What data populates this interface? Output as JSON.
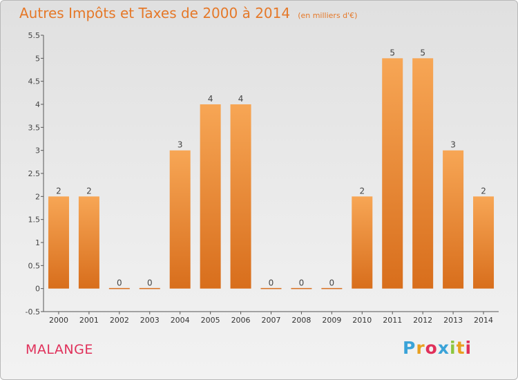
{
  "title": "Autres Impôts et Taxes de 2000 à 2014",
  "unit_note": "(en milliers d'€)",
  "city": "MALANGE",
  "logo": {
    "text": "Proxiti",
    "colors": [
      "#3aa3d8",
      "#e8a020",
      "#e0305a",
      "#8cc63e"
    ]
  },
  "colors": {
    "bar_top": "#f7a655",
    "bar_bottom": "#d86e1c",
    "title": "#e57828",
    "city": "#e0305a"
  },
  "chart_data": {
    "type": "bar",
    "title": "Autres Impôts et Taxes de 2000 à 2014",
    "subtitle": "(en milliers d'€)",
    "xlabel": "",
    "ylabel": "",
    "categories": [
      "2000",
      "2001",
      "2002",
      "2003",
      "2004",
      "2005",
      "2006",
      "2007",
      "2008",
      "2009",
      "2010",
      "2011",
      "2012",
      "2013",
      "2014"
    ],
    "values": [
      2,
      2,
      0,
      0,
      3,
      4,
      4,
      0,
      0,
      0,
      2,
      5,
      5,
      3,
      2
    ],
    "value_labels": [
      "2",
      "2",
      "0",
      "0",
      "3",
      "4",
      "4",
      "0",
      "0",
      "0",
      "2",
      "5",
      "5",
      "3",
      "2"
    ],
    "ylim": [
      -0.5,
      5.5
    ],
    "yticks": [
      -0.5,
      0,
      0.5,
      1,
      1.5,
      2,
      2.5,
      3,
      3.5,
      4,
      4.5,
      5,
      5.5
    ],
    "ytick_labels": [
      "-0.5",
      "0",
      "0.5",
      "1",
      "1.5",
      "2",
      "2.5",
      "3",
      "3.5",
      "4",
      "4.5",
      "5",
      "5.5"
    ],
    "grid": false,
    "legend": "none"
  }
}
